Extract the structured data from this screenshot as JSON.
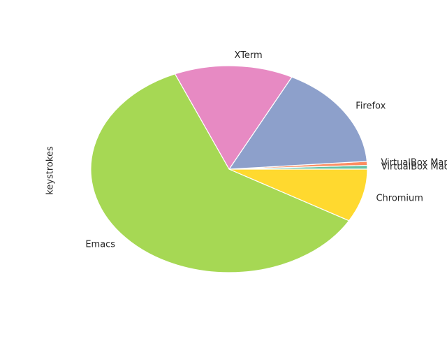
{
  "chart_data": {
    "type": "pie",
    "ylabel": "keystrokes",
    "start_angle_deg": 0,
    "direction": "counterclockwise",
    "slices": [
      {
        "label": "VirtualBox Machine",
        "value": 0.6,
        "color": "#66c2a5"
      },
      {
        "label": "VirtualBox Manager",
        "value": 0.6,
        "color": "#fc8d62"
      },
      {
        "label": "Firefox",
        "value": 16.3,
        "color": "#8da0cb"
      },
      {
        "label": "XTerm",
        "value": 13.9,
        "color": "#e78ac3"
      },
      {
        "label": "Emacs",
        "value": 60.3,
        "color": "#a6d854"
      },
      {
        "label": "Chromium",
        "value": 8.3,
        "color": "#ffd92f"
      }
    ]
  }
}
